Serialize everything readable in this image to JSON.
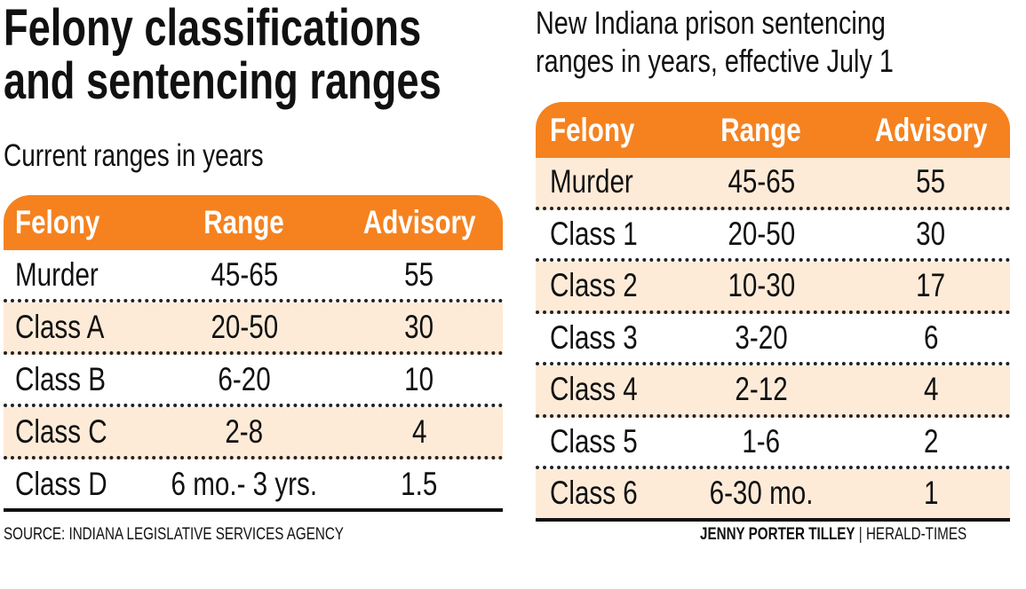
{
  "title_line1": "Felony classifications",
  "title_line2": "and sentencing ranges",
  "chart_data": [
    {
      "type": "table",
      "title": "Current ranges in years",
      "columns": [
        "Felony",
        "Range",
        "Advisory"
      ],
      "rows": [
        [
          "Murder",
          "45-65",
          "55"
        ],
        [
          "Class A",
          "20-50",
          "30"
        ],
        [
          "Class B",
          "6-20",
          "10"
        ],
        [
          "Class C",
          "2-8",
          "4"
        ],
        [
          "Class D",
          "6 mo.- 3 yrs.",
          "1.5"
        ]
      ]
    },
    {
      "type": "table",
      "title_line1": "New Indiana prison sentencing",
      "title_line2": "ranges in years, effective July 1",
      "columns": [
        "Felony",
        "Range",
        "Advisory"
      ],
      "rows": [
        [
          "Murder",
          "45-65",
          "55"
        ],
        [
          "Class 1",
          "20-50",
          "30"
        ],
        [
          "Class 2",
          "10-30",
          "17"
        ],
        [
          "Class 3",
          "3-20",
          "6"
        ],
        [
          "Class 4",
          "2-12",
          "4"
        ],
        [
          "Class 5",
          "1-6",
          "2"
        ],
        [
          "Class 6",
          "6-30 mo.",
          "1"
        ]
      ]
    }
  ],
  "source": "SOURCE: INDIANA LEGISLATIVE SERVICES AGENCY",
  "credit_name": "JENNY PORTER TILLEY",
  "credit_sep": "|",
  "credit_org": "HERALD-TIMES",
  "colors": {
    "header": "#f5821f",
    "alt_row": "#fdebd8"
  }
}
